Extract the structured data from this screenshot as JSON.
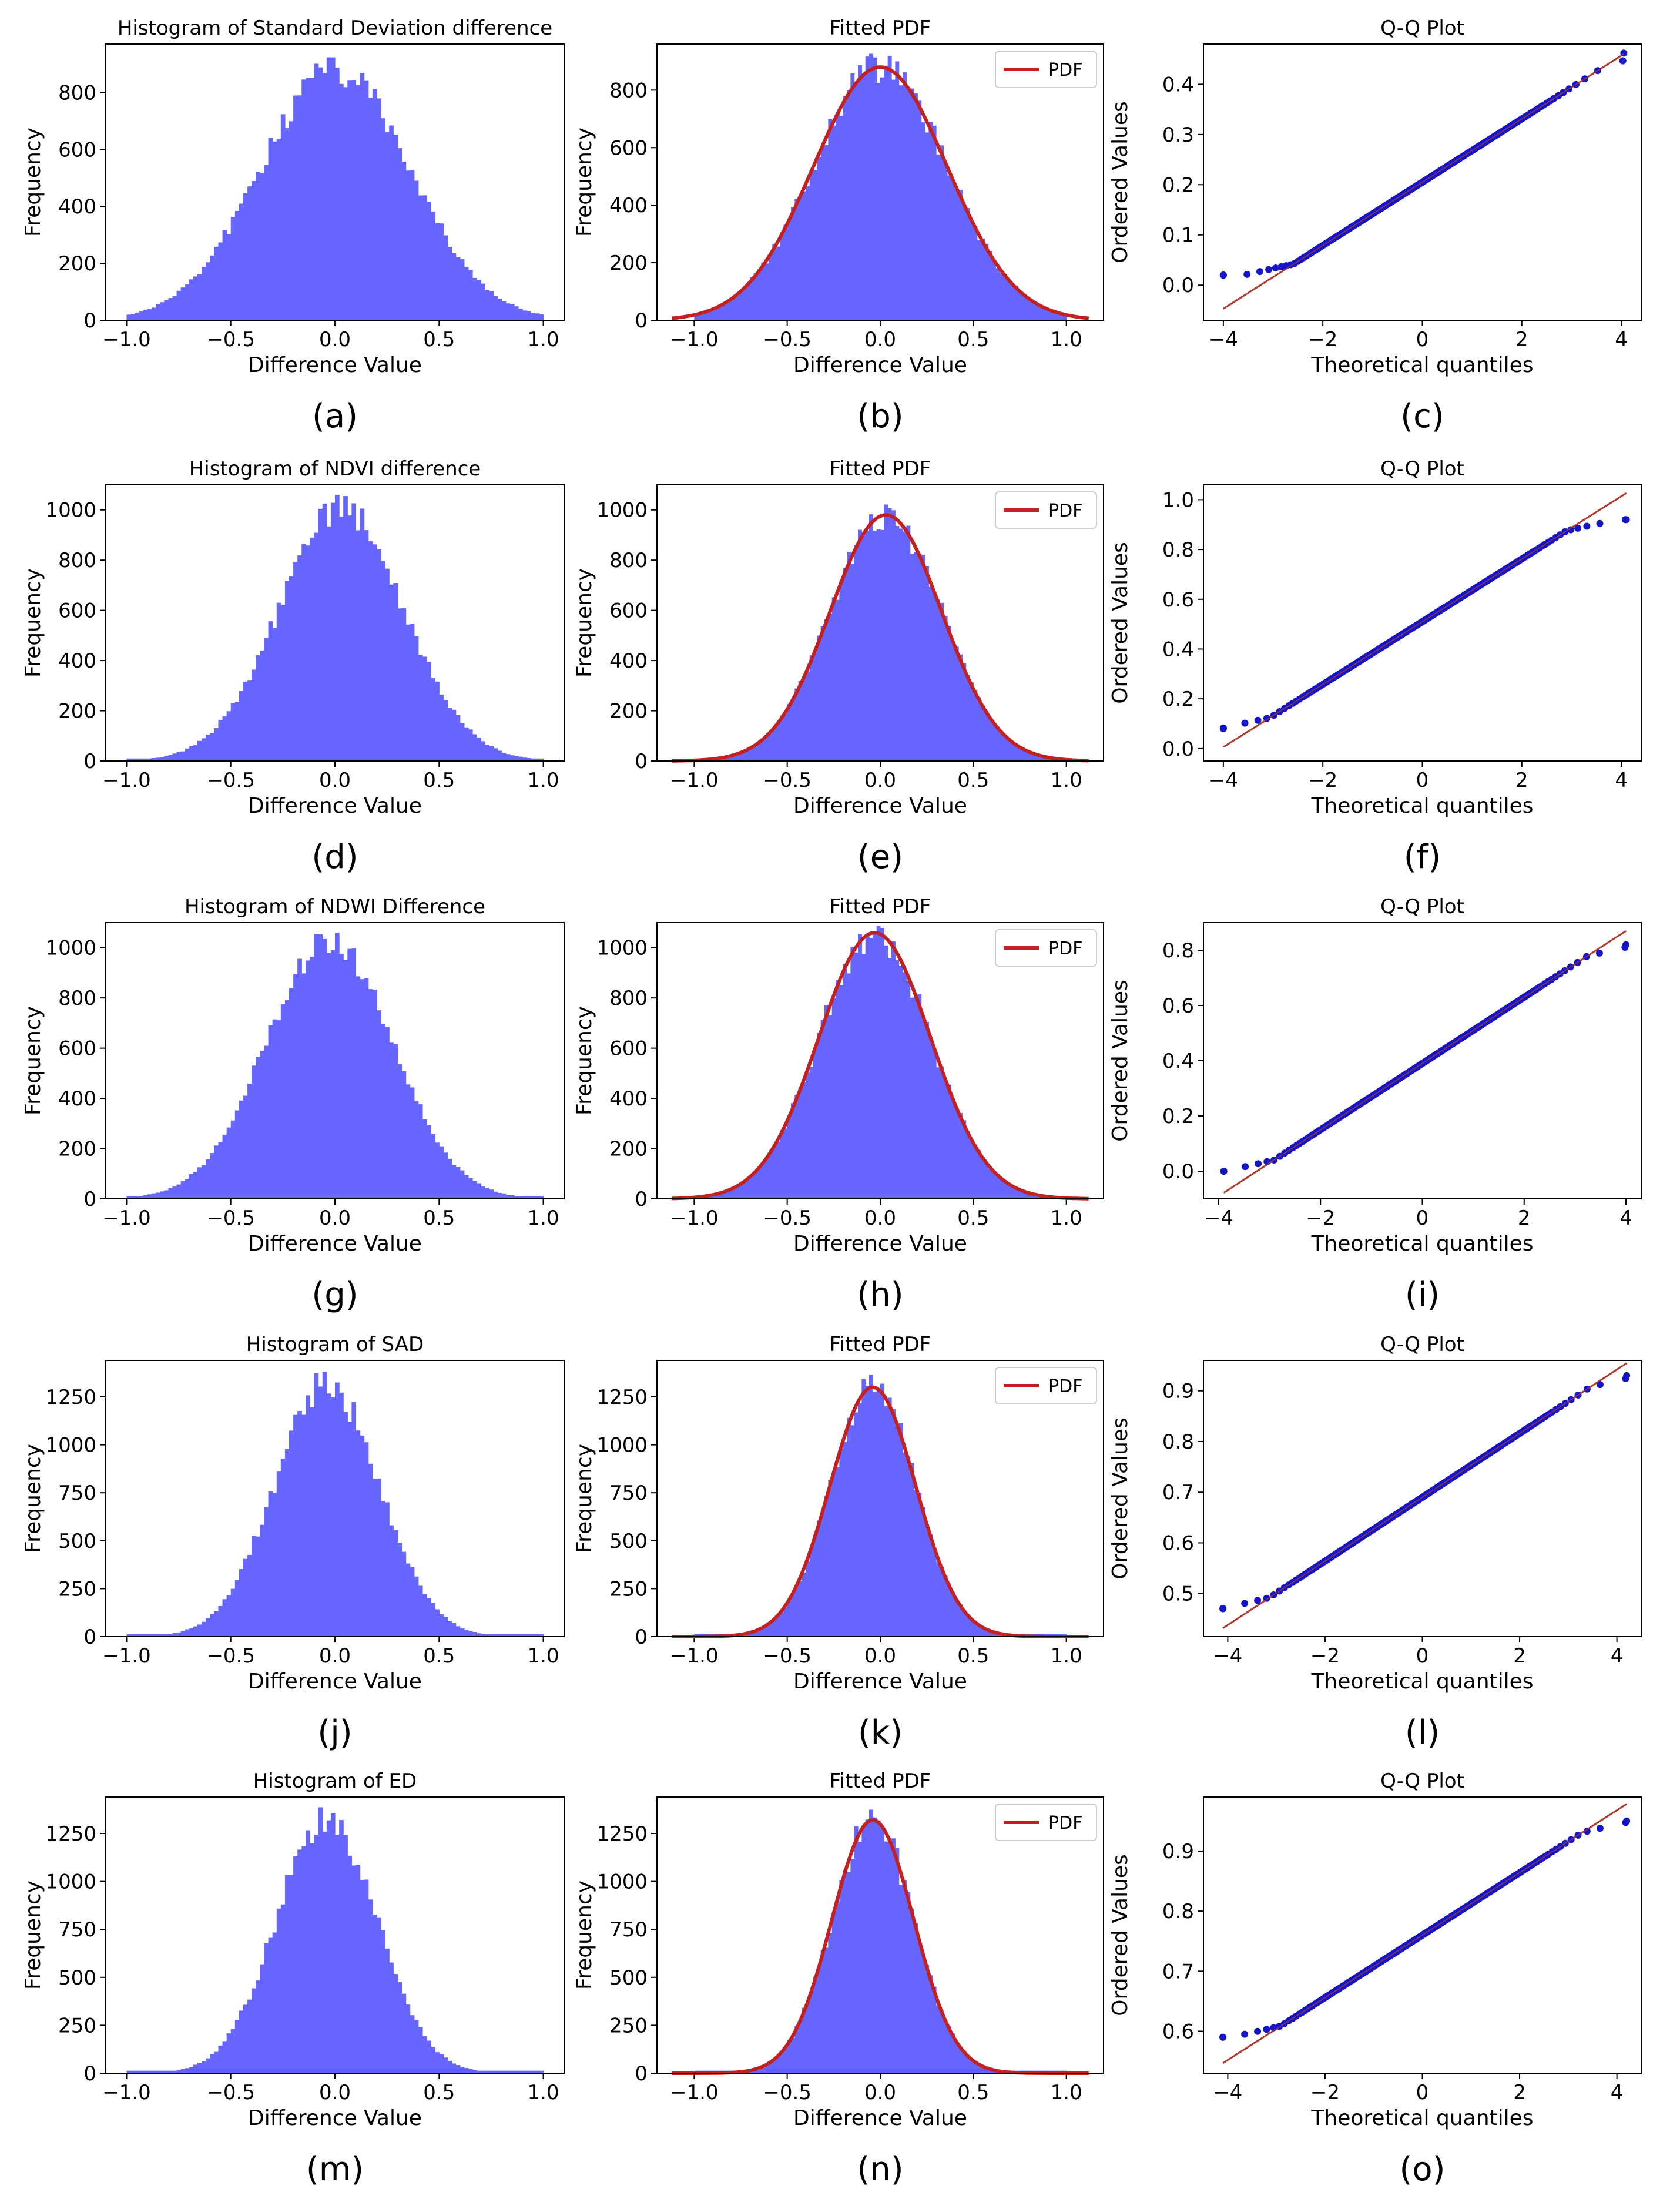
{
  "colors": {
    "histogram_fill": "#6666ff",
    "pdf_line": "#c42020",
    "qq_points": "#1414c8",
    "qq_line": "#b03a2e",
    "axes": "#000000"
  },
  "rows": [
    {
      "histogram": {
        "title": "Histogram of Standard Deviation difference",
        "xlabel": "Difference Value",
        "ylabel": "Frequency",
        "xlim": [
          -1.1,
          1.1
        ],
        "ylim": [
          0,
          970
        ],
        "xticks": [
          -1.0,
          -0.5,
          0.0,
          0.5,
          1.0
        ],
        "yticks": [
          0,
          200,
          400,
          600,
          800
        ],
        "mean": 0.0,
        "sd": 0.36,
        "peak": 880,
        "caption": "(a)"
      },
      "pdf": {
        "title": "Fitted PDF",
        "xlabel": "Difference Value",
        "ylabel": "Frequency",
        "xlim": [
          -1.2,
          1.2
        ],
        "ylim": [
          0,
          960
        ],
        "xticks": [
          -1.0,
          -0.5,
          0.0,
          0.5,
          1.0
        ],
        "yticks": [
          0,
          200,
          400,
          600,
          800
        ],
        "legend": "PDF",
        "mean": 0.0,
        "sd": 0.36,
        "peak": 880,
        "caption": "(b)"
      },
      "qq": {
        "title": "Q-Q Plot",
        "xlabel": "Theoretical quantiles",
        "ylabel": "Ordered Values",
        "xlim": [
          -4.4,
          4.4
        ],
        "ylim": [
          -0.07,
          0.48
        ],
        "xticks": [
          -4,
          -2,
          0,
          2,
          4
        ],
        "yticks": [
          0.0,
          0.1,
          0.2,
          0.3,
          0.4
        ],
        "ytick_decimals": 1,
        "line_intercept": 0.205,
        "line_slope": 0.063,
        "qmin": -4.0,
        "qmax": 4.05,
        "low_clip": 0.02,
        "high_clip": 0.462,
        "caption": "(c)"
      }
    },
    {
      "histogram": {
        "title": "Histogram of NDVI difference",
        "xlabel": "Difference Value",
        "ylabel": "Frequency",
        "xlim": [
          -1.1,
          1.1
        ],
        "ylim": [
          0,
          1100
        ],
        "xticks": [
          -1.0,
          -0.5,
          0.0,
          0.5,
          1.0
        ],
        "yticks": [
          0,
          200,
          400,
          600,
          800,
          1000
        ],
        "mean": 0.03,
        "sd": 0.3,
        "peak": 1000,
        "caption": "(d)"
      },
      "pdf": {
        "title": "Fitted PDF",
        "xlabel": "Difference Value",
        "ylabel": "Frequency",
        "xlim": [
          -1.2,
          1.2
        ],
        "ylim": [
          0,
          1100
        ],
        "xticks": [
          -1.0,
          -0.5,
          0.0,
          0.5,
          1.0
        ],
        "yticks": [
          0,
          200,
          400,
          600,
          800,
          1000
        ],
        "legend": "PDF",
        "mean": 0.03,
        "sd": 0.3,
        "peak": 980,
        "caption": "(e)"
      },
      "qq": {
        "title": "Q-Q Plot",
        "xlabel": "Theoretical quantiles",
        "ylabel": "Ordered Values",
        "xlim": [
          -4.4,
          4.4
        ],
        "ylim": [
          -0.05,
          1.06
        ],
        "xticks": [
          -4,
          -2,
          0,
          2,
          4
        ],
        "yticks": [
          0.0,
          0.2,
          0.4,
          0.6,
          0.8,
          1.0
        ],
        "ytick_decimals": 1,
        "line_intercept": 0.51,
        "line_slope": 0.126,
        "qmin": -4.0,
        "qmax": 4.1,
        "low_clip": 0.08,
        "high_clip": 0.92,
        "caption": "(f)"
      }
    },
    {
      "histogram": {
        "title": "Histogram of NDWI Difference",
        "xlabel": "Difference Value",
        "ylabel": "Frequency",
        "xlim": [
          -1.1,
          1.1
        ],
        "ylim": [
          0,
          1100
        ],
        "xticks": [
          -1.0,
          -0.5,
          0.0,
          0.5,
          1.0
        ],
        "yticks": [
          0,
          200,
          400,
          600,
          800,
          1000
        ],
        "mean": -0.03,
        "sd": 0.3,
        "peak": 1040,
        "caption": "(g)"
      },
      "pdf": {
        "title": "Fitted PDF",
        "xlabel": "Difference Value",
        "ylabel": "Frequency",
        "xlim": [
          -1.2,
          1.2
        ],
        "ylim": [
          0,
          1100
        ],
        "xticks": [
          -1.0,
          -0.5,
          0.0,
          0.5,
          1.0
        ],
        "yticks": [
          0,
          200,
          400,
          600,
          800,
          1000
        ],
        "legend": "PDF",
        "mean": -0.03,
        "sd": 0.3,
        "peak": 1060,
        "caption": "(h)"
      },
      "qq": {
        "title": "Q-Q Plot",
        "xlabel": "Theoretical quantiles",
        "ylabel": "Ordered Values",
        "xlim": [
          -4.3,
          4.3
        ],
        "ylim": [
          -0.1,
          0.9
        ],
        "xticks": [
          -4,
          -2,
          0,
          2,
          4
        ],
        "yticks": [
          0.0,
          0.2,
          0.4,
          0.6,
          0.8
        ],
        "ytick_decimals": 1,
        "line_intercept": 0.39,
        "line_slope": 0.12,
        "qmin": -3.9,
        "qmax": 4.0,
        "low_clip": 0.0,
        "high_clip": 0.82,
        "caption": "(i)"
      }
    },
    {
      "histogram": {
        "title": "Histogram of SAD",
        "xlabel": "Difference Value",
        "ylabel": "Frequency",
        "xlim": [
          -1.1,
          1.1
        ],
        "ylim": [
          0,
          1440
        ],
        "xticks": [
          -1.0,
          -0.5,
          0.0,
          0.5,
          1.0
        ],
        "yticks": [
          0,
          250,
          500,
          750,
          1000,
          1250
        ],
        "mean": -0.04,
        "sd": 0.25,
        "peak": 1320,
        "caption": "(j)"
      },
      "pdf": {
        "title": "Fitted PDF",
        "xlabel": "Difference Value",
        "ylabel": "Frequency",
        "xlim": [
          -1.2,
          1.2
        ],
        "ylim": [
          0,
          1440
        ],
        "xticks": [
          -1.0,
          -0.5,
          0.0,
          0.5,
          1.0
        ],
        "yticks": [
          0,
          250,
          500,
          750,
          1000,
          1250
        ],
        "legend": "PDF",
        "mean": -0.04,
        "sd": 0.23,
        "peak": 1300,
        "caption": "(k)"
      },
      "qq": {
        "title": "Q-Q Plot",
        "xlabel": "Theoretical quantiles",
        "ylabel": "Ordered Values",
        "xlim": [
          -4.5,
          4.5
        ],
        "ylim": [
          0.415,
          0.96
        ],
        "xticks": [
          -4,
          -2,
          0,
          2,
          4
        ],
        "yticks": [
          0.5,
          0.6,
          0.7,
          0.8,
          0.9
        ],
        "ytick_decimals": 1,
        "line_intercept": 0.69,
        "line_slope": 0.063,
        "qmin": -4.1,
        "qmax": 4.2,
        "low_clip": 0.47,
        "high_clip": 0.93,
        "caption": "(l)"
      }
    },
    {
      "histogram": {
        "title": "Histogram of  ED",
        "xlabel": "Difference Value",
        "ylabel": "Frequency",
        "xlim": [
          -1.1,
          1.1
        ],
        "ylim": [
          0,
          1440
        ],
        "xticks": [
          -1.0,
          -0.5,
          0.0,
          0.5,
          1.0
        ],
        "yticks": [
          0,
          250,
          500,
          750,
          1000,
          1250
        ],
        "mean": -0.04,
        "sd": 0.24,
        "peak": 1330,
        "caption": "(m)"
      },
      "pdf": {
        "title": "Fitted PDF",
        "xlabel": "Difference Value",
        "ylabel": "Frequency",
        "xlim": [
          -1.2,
          1.2
        ],
        "ylim": [
          0,
          1440
        ],
        "xticks": [
          -1.0,
          -0.5,
          0.0,
          0.5,
          1.0
        ],
        "yticks": [
          0,
          250,
          500,
          750,
          1000,
          1250
        ],
        "legend": "PDF",
        "mean": -0.04,
        "sd": 0.22,
        "peak": 1320,
        "caption": "(n)"
      },
      "qq": {
        "title": "Q-Q Plot",
        "xlabel": "Theoretical quantiles",
        "ylabel": "Ordered Values",
        "xlim": [
          -4.5,
          4.5
        ],
        "ylim": [
          0.53,
          0.99
        ],
        "xticks": [
          -4,
          -2,
          0,
          2,
          4
        ],
        "yticks": [
          0.6,
          0.7,
          0.8,
          0.9
        ],
        "ytick_decimals": 1,
        "line_intercept": 0.76,
        "line_slope": 0.052,
        "qmin": -4.1,
        "qmax": 4.2,
        "low_clip": 0.59,
        "high_clip": 0.95,
        "caption": "(o)"
      }
    }
  ],
  "chart_data": [
    {
      "type": "bar",
      "panel": "(a)",
      "title": "Histogram of Standard Deviation difference",
      "xlabel": "Difference Value",
      "ylabel": "Frequency",
      "xlim": [
        -1.1,
        1.1
      ],
      "ylim": [
        0,
        970
      ],
      "distribution": "approximately normal, mean ~0.0, sd ~0.36, peak frequency ~880"
    },
    {
      "type": "line",
      "panel": "(b)",
      "title": "Fitted PDF",
      "legend": [
        "PDF"
      ],
      "xlabel": "Difference Value",
      "ylabel": "Frequency",
      "xlim": [
        -1.2,
        1.2
      ],
      "ylim": [
        0,
        960
      ],
      "pdf_peak": 880
    },
    {
      "type": "scatter",
      "panel": "(c)",
      "title": "Q-Q Plot",
      "xlabel": "Theoretical quantiles",
      "ylabel": "Ordered Values",
      "xlim": [
        -4.4,
        4.4
      ],
      "ylim": [
        -0.07,
        0.48
      ],
      "range_of_values": [
        0.02,
        0.46
      ]
    },
    {
      "type": "bar",
      "panel": "(d)",
      "title": "Histogram of NDVI difference",
      "xlabel": "Difference Value",
      "ylabel": "Frequency",
      "xlim": [
        -1.1,
        1.1
      ],
      "ylim": [
        0,
        1100
      ],
      "distribution": "approximately normal, mean ~0.03, sd ~0.30, peak frequency ~1000"
    },
    {
      "type": "line",
      "panel": "(e)",
      "title": "Fitted PDF",
      "legend": [
        "PDF"
      ],
      "xlim": [
        -1.2,
        1.2
      ],
      "ylim": [
        0,
        1100
      ],
      "pdf_peak": 980
    },
    {
      "type": "scatter",
      "panel": "(f)",
      "title": "Q-Q Plot",
      "xlim": [
        -4.4,
        4.4
      ],
      "ylim": [
        -0.05,
        1.06
      ],
      "range_of_values": [
        0.08,
        0.92
      ]
    },
    {
      "type": "bar",
      "panel": "(g)",
      "title": "Histogram of NDWI Difference",
      "xlim": [
        -1.1,
        1.1
      ],
      "ylim": [
        0,
        1100
      ],
      "distribution": "approximately normal, mean ~-0.03, sd ~0.30, peak frequency ~1040"
    },
    {
      "type": "line",
      "panel": "(h)",
      "title": "Fitted PDF",
      "legend": [
        "PDF"
      ],
      "xlim": [
        -1.2,
        1.2
      ],
      "ylim": [
        0,
        1100
      ],
      "pdf_peak": 1060
    },
    {
      "type": "scatter",
      "panel": "(i)",
      "title": "Q-Q Plot",
      "xlim": [
        -4.3,
        4.3
      ],
      "ylim": [
        -0.1,
        0.9
      ],
      "range_of_values": [
        0.0,
        0.82
      ]
    },
    {
      "type": "bar",
      "panel": "(j)",
      "title": "Histogram of SAD",
      "xlim": [
        -1.1,
        1.1
      ],
      "ylim": [
        0,
        1440
      ],
      "distribution": "approximately normal, mean ~-0.04, sd ~0.25, peak frequency ~1320"
    },
    {
      "type": "line",
      "panel": "(k)",
      "title": "Fitted PDF",
      "legend": [
        "PDF"
      ],
      "xlim": [
        -1.2,
        1.2
      ],
      "ylim": [
        0,
        1440
      ],
      "pdf_peak": 1300
    },
    {
      "type": "scatter",
      "panel": "(l)",
      "title": "Q-Q Plot",
      "xlim": [
        -4.5,
        4.5
      ],
      "ylim": [
        0.415,
        0.96
      ],
      "range_of_values": [
        0.47,
        0.93
      ]
    },
    {
      "type": "bar",
      "panel": "(m)",
      "title": "Histogram of  ED",
      "xlim": [
        -1.1,
        1.1
      ],
      "ylim": [
        0,
        1440
      ],
      "distribution": "approximately normal, mean ~-0.04, sd ~0.24, peak frequency ~1330"
    },
    {
      "type": "line",
      "panel": "(n)",
      "title": "Fitted PDF",
      "legend": [
        "PDF"
      ],
      "xlim": [
        -1.2,
        1.2
      ],
      "ylim": [
        0,
        1440
      ],
      "pdf_peak": 1320
    },
    {
      "type": "scatter",
      "panel": "(o)",
      "title": "Q-Q Plot",
      "xlim": [
        -4.5,
        4.5
      ],
      "ylim": [
        0.53,
        0.99
      ],
      "range_of_values": [
        0.59,
        0.95
      ]
    }
  ]
}
